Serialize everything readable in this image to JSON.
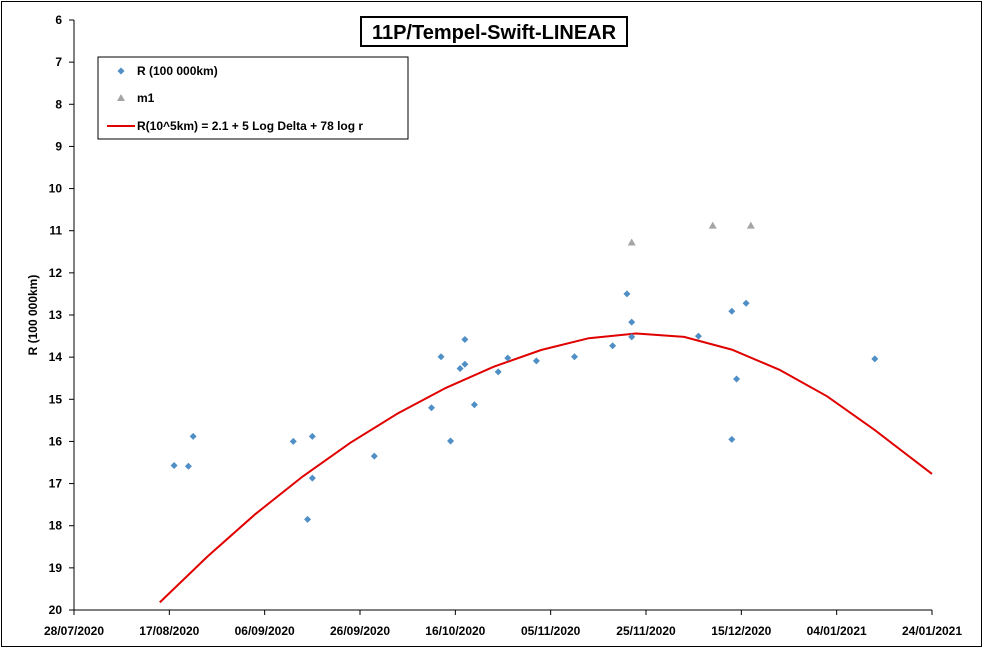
{
  "chart_data": {
    "type": "scatter",
    "title": "11P/Tempel-Swift-LINEAR",
    "xlabel": "",
    "ylabel": "R (100 000km)",
    "y_axis": {
      "min": 6,
      "max": 20,
      "step": 1,
      "reversed": true
    },
    "x_axis": {
      "type": "date",
      "start": "2020-07-28",
      "end": "2021-01-24",
      "ticks": [
        "2020-07-28",
        "2020-08-17",
        "2020-09-06",
        "2020-09-26",
        "2020-10-16",
        "2020-11-05",
        "2020-11-25",
        "2020-12-15",
        "2021-01-04",
        "2021-01-24"
      ],
      "tick_labels": [
        "28/07/2020",
        "17/08/2020",
        "06/09/2020",
        "26/09/2020",
        "16/10/2020",
        "05/11/2020",
        "25/11/2020",
        "15/12/2020",
        "04/01/2021",
        "24/01/2021"
      ]
    },
    "grid": false,
    "legend_position": "top-left",
    "colors": {
      "r_points": "#4f8fc5",
      "m1_points": "#a5a5a5",
      "fit_line": "#e00000"
    },
    "series": [
      {
        "name": "R (100 000km)",
        "kind": "points",
        "marker": "diamond",
        "points": [
          {
            "x": "2020-08-18",
            "y": 16.57
          },
          {
            "x": "2020-08-21",
            "y": 16.59
          },
          {
            "x": "2020-08-22",
            "y": 15.88
          },
          {
            "x": "2020-09-12",
            "y": 16.0
          },
          {
            "x": "2020-09-15",
            "y": 17.85
          },
          {
            "x": "2020-09-16",
            "y": 16.87
          },
          {
            "x": "2020-09-16",
            "y": 15.88
          },
          {
            "x": "2020-09-29",
            "y": 16.35
          },
          {
            "x": "2020-10-11",
            "y": 15.2
          },
          {
            "x": "2020-10-13",
            "y": 13.99
          },
          {
            "x": "2020-10-15",
            "y": 15.99
          },
          {
            "x": "2020-10-17",
            "y": 14.27
          },
          {
            "x": "2020-10-18",
            "y": 13.58
          },
          {
            "x": "2020-10-18",
            "y": 14.17
          },
          {
            "x": "2020-10-20",
            "y": 15.13
          },
          {
            "x": "2020-10-25",
            "y": 14.35
          },
          {
            "x": "2020-10-27",
            "y": 14.02
          },
          {
            "x": "2020-11-02",
            "y": 14.09
          },
          {
            "x": "2020-11-10",
            "y": 13.99
          },
          {
            "x": "2020-11-18",
            "y": 13.73
          },
          {
            "x": "2020-11-21",
            "y": 12.5
          },
          {
            "x": "2020-11-22",
            "y": 13.17
          },
          {
            "x": "2020-11-22",
            "y": 13.52
          },
          {
            "x": "2020-12-06",
            "y": 13.5
          },
          {
            "x": "2020-12-13",
            "y": 12.91
          },
          {
            "x": "2020-12-13",
            "y": 15.95
          },
          {
            "x": "2020-12-14",
            "y": 14.52
          },
          {
            "x": "2020-12-16",
            "y": 12.72
          },
          {
            "x": "2021-01-12",
            "y": 14.04
          }
        ]
      },
      {
        "name": "m1",
        "kind": "points",
        "marker": "triangle",
        "points": [
          {
            "x": "2020-11-22",
            "y": 11.28
          },
          {
            "x": "2020-12-09",
            "y": 10.88
          },
          {
            "x": "2020-12-17",
            "y": 10.88
          }
        ]
      },
      {
        "name": "R(10^5km) = 2.1 + 5 Log Delta + 78 log r",
        "kind": "line",
        "points": [
          {
            "x": "2020-08-15",
            "y": 19.82
          },
          {
            "x": "2020-08-25",
            "y": 18.73
          },
          {
            "x": "2020-09-04",
            "y": 17.73
          },
          {
            "x": "2020-09-14",
            "y": 16.83
          },
          {
            "x": "2020-09-24",
            "y": 16.03
          },
          {
            "x": "2020-10-04",
            "y": 15.33
          },
          {
            "x": "2020-10-14",
            "y": 14.73
          },
          {
            "x": "2020-10-24",
            "y": 14.23
          },
          {
            "x": "2020-11-03",
            "y": 13.83
          },
          {
            "x": "2020-11-13",
            "y": 13.55
          },
          {
            "x": "2020-11-23",
            "y": 13.44
          },
          {
            "x": "2020-12-03",
            "y": 13.52
          },
          {
            "x": "2020-12-13",
            "y": 13.82
          },
          {
            "x": "2020-12-23",
            "y": 14.3
          },
          {
            "x": "2021-01-02",
            "y": 14.93
          },
          {
            "x": "2021-01-12",
            "y": 15.73
          },
          {
            "x": "2021-01-24",
            "y": 16.77
          }
        ]
      }
    ]
  }
}
